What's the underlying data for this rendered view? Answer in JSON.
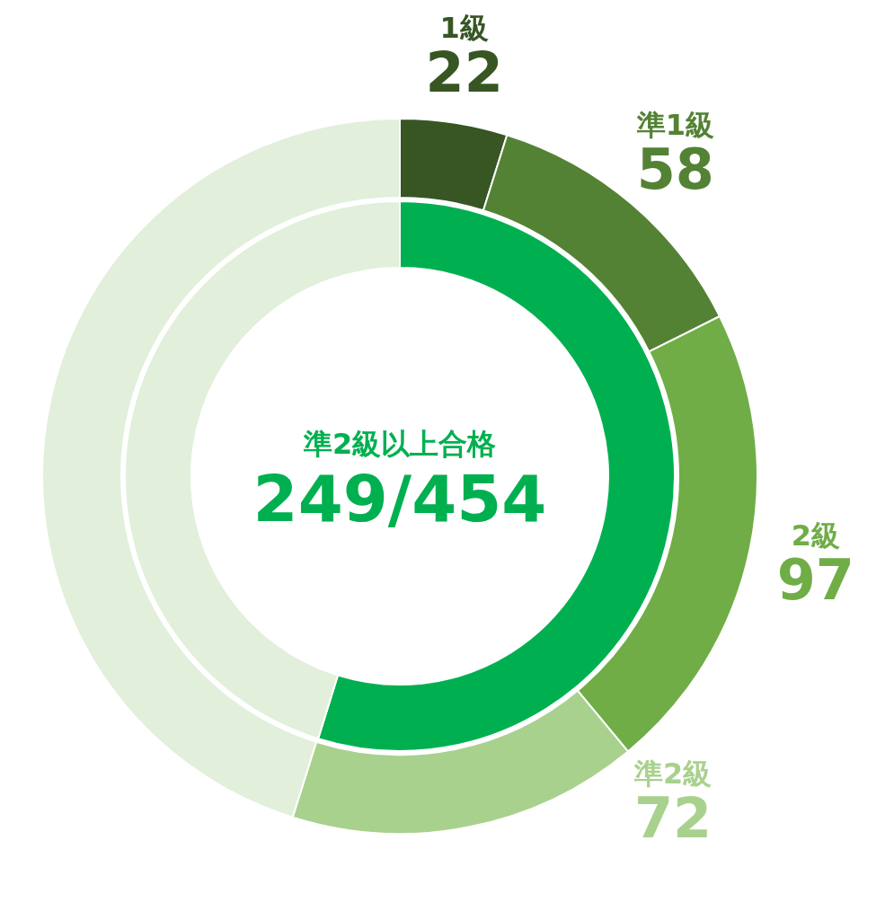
{
  "chart_data": [
    {
      "type": "donut",
      "categories": [
        "1級",
        "準1級",
        "2級",
        "準2級",
        null
      ],
      "values": [
        22,
        58,
        97,
        72,
        205
      ],
      "colors": [
        "#375623",
        "#548235",
        "#70ad47",
        "#a9d18e",
        "#e2efda"
      ],
      "value_labels": [
        "22",
        "58",
        "97",
        "72",
        null
      ]
    },
    {
      "type": "donut",
      "title": "準2級以上合格",
      "annotations": [
        "249/454"
      ],
      "categories": [
        null,
        null
      ],
      "values": [
        54.8,
        45.2
      ],
      "colors": [
        "#00b050",
        "#e2efda"
      ]
    }
  ]
}
